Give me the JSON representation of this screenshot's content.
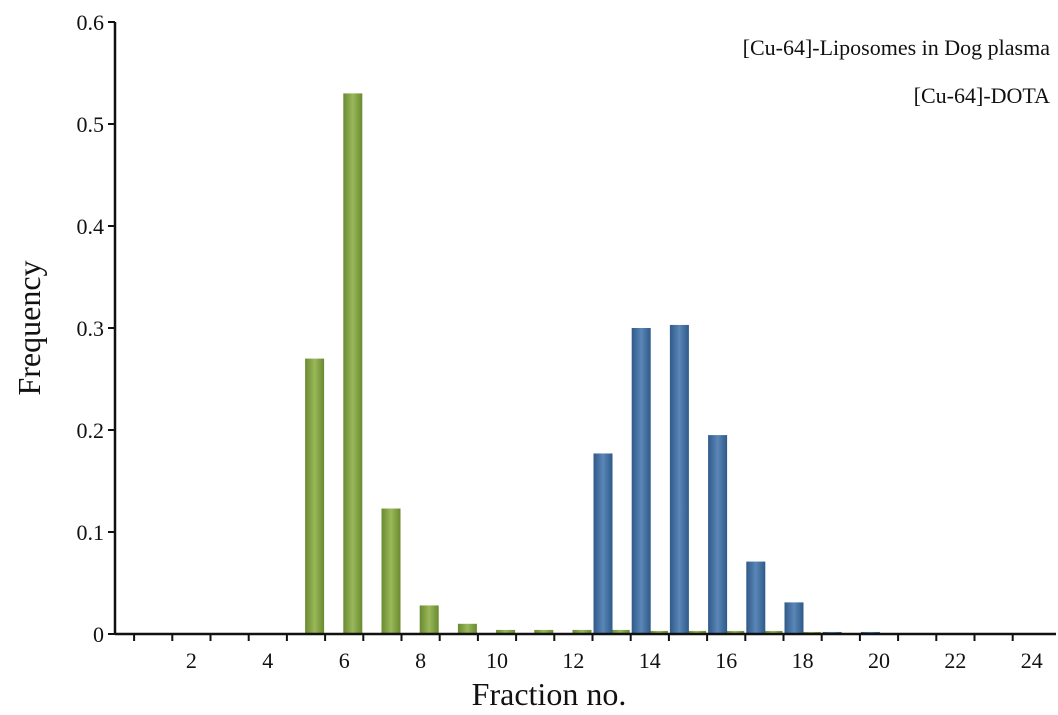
{
  "chart_data": {
    "type": "bar",
    "title": "",
    "xlabel": "Fraction no.",
    "ylabel": "Frequency",
    "ylim": [
      0,
      0.6
    ],
    "xlim": [
      0,
      25
    ],
    "yticks": [
      "0",
      "0.1",
      "0.2",
      "0.3",
      "0.4",
      "0.5",
      "0.6"
    ],
    "yticks_values": [
      0,
      0.1,
      0.2,
      0.3,
      0.4,
      0.5,
      0.6
    ],
    "xtick_values": [
      2,
      4,
      6,
      8,
      10,
      12,
      14,
      16,
      18,
      20,
      22,
      24
    ],
    "xtick_labels": [
      "2",
      "4",
      "6",
      "8",
      "10",
      "12",
      "14",
      "16",
      "18",
      "20",
      "22",
      "24"
    ],
    "categories": [
      1,
      2,
      3,
      4,
      5,
      6,
      7,
      8,
      9,
      10,
      11,
      12,
      13,
      14,
      15,
      16,
      17,
      18,
      19,
      20,
      21,
      22,
      23,
      24
    ],
    "series": [
      {
        "name": "[Cu-64]-Liposomes in Dog plasma",
        "color": "#7a9a3c",
        "values": [
          0,
          0,
          0,
          0,
          0,
          0.27,
          0.53,
          0.123,
          0.028,
          0.01,
          0.004,
          0.004,
          0.004,
          0.004,
          0.003,
          0.003,
          0.003,
          0.003,
          0.002,
          0,
          0,
          0,
          0,
          0
        ]
      },
      {
        "name": "[Cu-64]-DOTA",
        "color": "#3d6a9a",
        "values": [
          0,
          0,
          0,
          0,
          0,
          0,
          0,
          0,
          0,
          0,
          0,
          0,
          0.177,
          0.3,
          0.303,
          0.195,
          0.071,
          0.031,
          0.002,
          0.002,
          0,
          0,
          0,
          0
        ]
      }
    ],
    "legend": "top-right",
    "grid": false
  }
}
